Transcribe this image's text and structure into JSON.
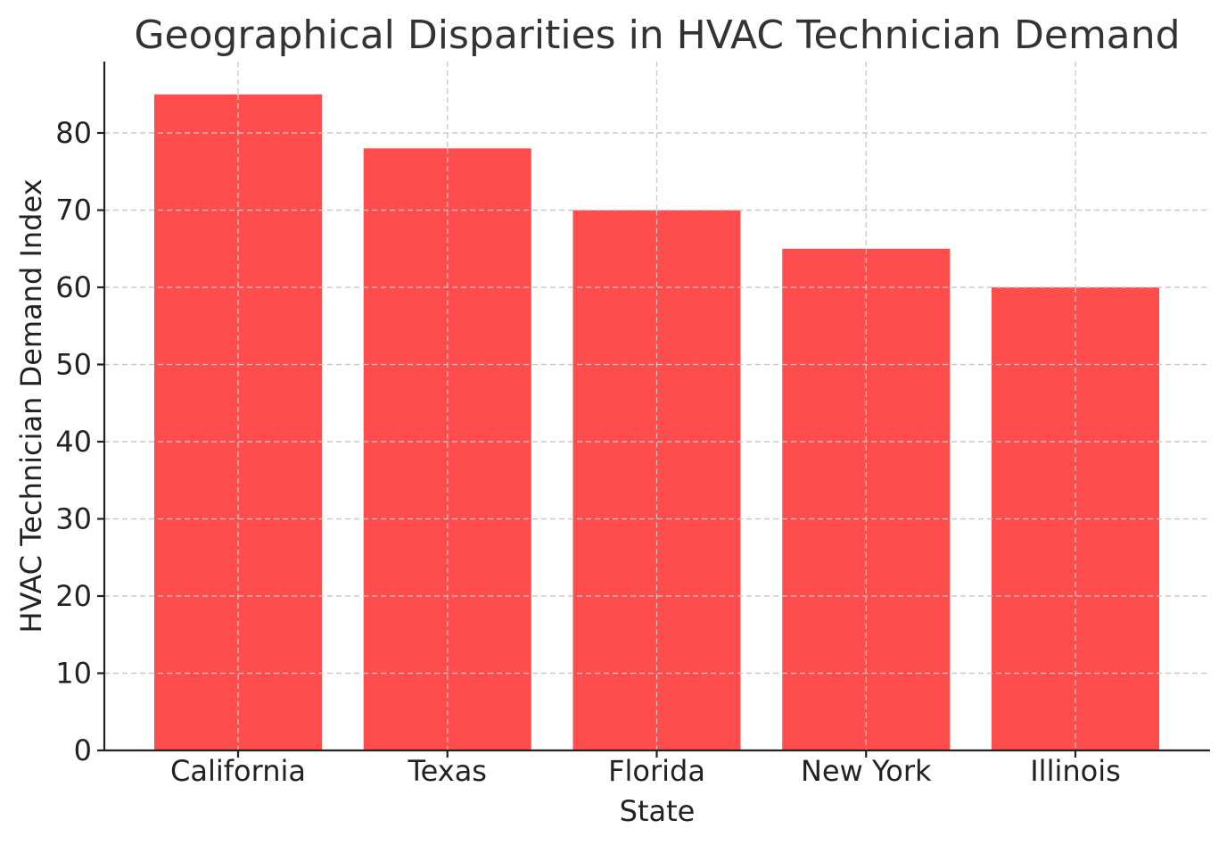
{
  "chart_data": {
    "type": "bar",
    "title": "Geographical Disparities in HVAC Technician Demand",
    "xlabel": "State",
    "ylabel": "HVAC Technician Demand Index",
    "categories": [
      "California",
      "Texas",
      "Florida",
      "New York",
      "Illinois"
    ],
    "values": [
      85,
      78,
      70,
      65,
      60
    ],
    "ylim": [
      0,
      89.25
    ],
    "yticks": [
      0,
      10,
      20,
      30,
      40,
      50,
      60,
      70,
      80
    ],
    "grid": true,
    "bar_color": "#ff4d4d"
  }
}
